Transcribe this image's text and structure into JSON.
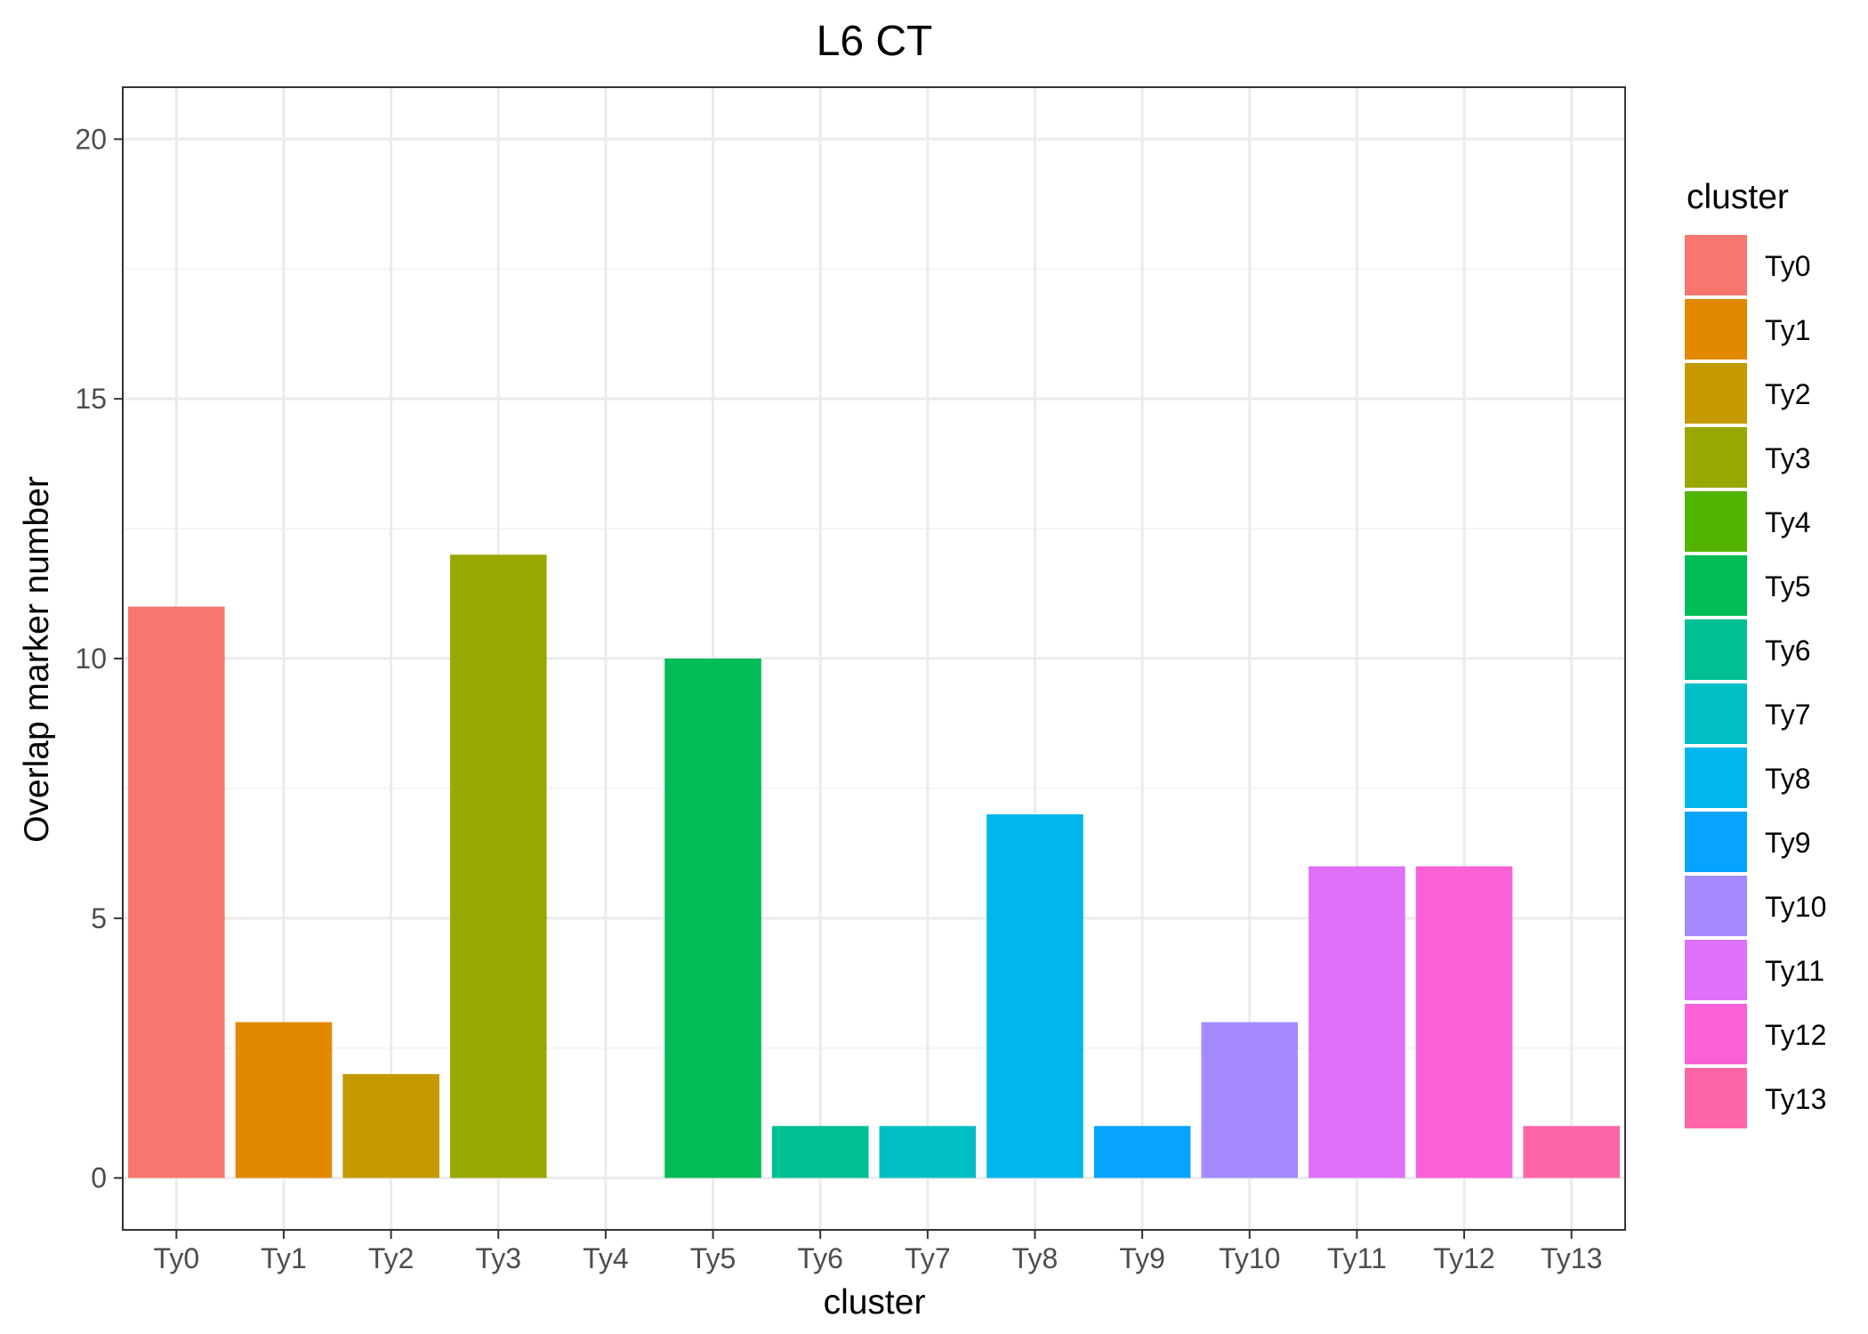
{
  "chart_data": {
    "type": "bar",
    "title": "L6 CT",
    "xlabel": "cluster",
    "ylabel": "Overlap marker number",
    "categories": [
      "Ty0",
      "Ty1",
      "Ty2",
      "Ty3",
      "Ty4",
      "Ty5",
      "Ty6",
      "Ty7",
      "Ty8",
      "Ty9",
      "Ty10",
      "Ty11",
      "Ty12",
      "Ty13"
    ],
    "values": [
      11,
      3,
      2,
      12,
      0,
      10,
      1,
      1,
      7,
      1,
      3,
      6,
      6,
      1
    ],
    "colors": [
      "#F8766D",
      "#E38900",
      "#C49A00",
      "#99A800",
      "#53B400",
      "#00BC56",
      "#00C094",
      "#00BFC4",
      "#00B6EB",
      "#06A4FF",
      "#A58AFF",
      "#DF70F8",
      "#FB61D7",
      "#FF66A8"
    ],
    "ylim": [
      -1,
      21
    ],
    "yticks": [
      0,
      5,
      10,
      15,
      20
    ],
    "grid": true,
    "legend": {
      "title": "cluster",
      "position": "right",
      "labels": [
        "Ty0",
        "Ty1",
        "Ty2",
        "Ty3",
        "Ty4",
        "Ty5",
        "Ty6",
        "Ty7",
        "Ty8",
        "Ty9",
        "Ty10",
        "Ty11",
        "Ty12",
        "Ty13"
      ]
    }
  }
}
